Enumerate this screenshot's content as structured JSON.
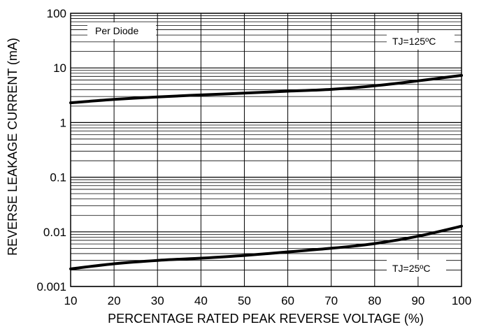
{
  "chart_data": {
    "type": "line",
    "title": "",
    "xlabel": "PERCENTAGE RATED PEAK REVERSE VOLTAGE (%)",
    "ylabel": "REVERSE LEAKAGE CURRENT (mA)",
    "xlim": [
      10,
      100
    ],
    "ylim": [
      0.001,
      100
    ],
    "yscale": "log",
    "grid": true,
    "x_ticks": [
      "10",
      "20",
      "30",
      "40",
      "50",
      "60",
      "70",
      "80",
      "90",
      "100"
    ],
    "y_ticks": [
      "0.001",
      "0.01",
      "0.1",
      "1",
      "10",
      "100"
    ],
    "annotations": [
      "Per Diode",
      "TJ=125ºC",
      "TJ=25ºC"
    ],
    "series": [
      {
        "x": [
          10,
          20,
          30,
          40,
          50,
          60,
          70,
          80,
          90,
          100
        ],
        "values": [
          2.3,
          2.65,
          2.95,
          3.2,
          3.45,
          3.75,
          4.05,
          4.7,
          5.8,
          7.3
        ]
      },
      {
        "x": [
          10,
          20,
          30,
          40,
          50,
          60,
          70,
          80,
          90,
          100
        ],
        "values": [
          0.0021,
          0.0026,
          0.003,
          0.0033,
          0.0037,
          0.0043,
          0.005,
          0.0061,
          0.0083,
          0.0127
        ]
      }
    ]
  }
}
